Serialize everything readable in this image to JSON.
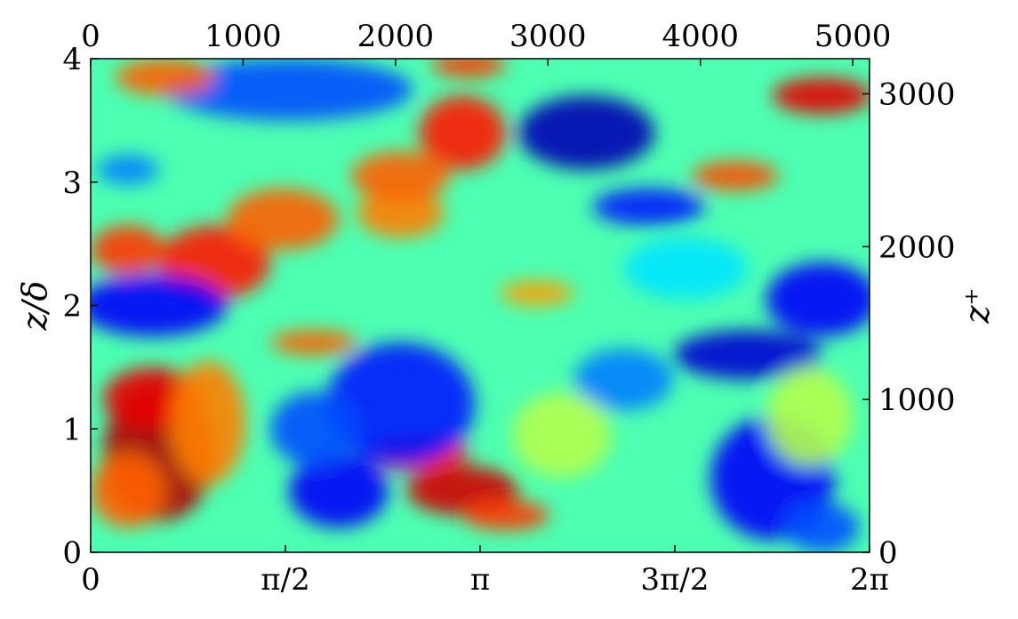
{
  "chart_data": {
    "type": "heatmap",
    "title": "",
    "colormap": "jet",
    "colormap_stops": [
      "#00007f",
      "#0000ff",
      "#007fff",
      "#00ffff",
      "#7fff7f",
      "#ffff00",
      "#ff7f00",
      "#ff0000",
      "#7f0000"
    ],
    "x_bottom": {
      "label": "",
      "range": [
        0,
        6.2832
      ],
      "ticks": [
        {
          "value": 0,
          "label": "0"
        },
        {
          "value": 1.5708,
          "label": "π/2"
        },
        {
          "value": 3.1416,
          "label": "π"
        },
        {
          "value": 4.7124,
          "label": "3π/2"
        },
        {
          "value": 6.2832,
          "label": "2π"
        }
      ]
    },
    "x_top": {
      "label": "",
      "range": [
        0,
        5110
      ],
      "ticks": [
        {
          "value": 0,
          "label": "0"
        },
        {
          "value": 1000,
          "label": "1000"
        },
        {
          "value": 2000,
          "label": "2000"
        },
        {
          "value": 3000,
          "label": "3000"
        },
        {
          "value": 4000,
          "label": "4000"
        },
        {
          "value": 5000,
          "label": "5000"
        }
      ]
    },
    "y_left": {
      "label": "z/δ",
      "range": [
        0,
        4
      ],
      "ticks": [
        {
          "value": 0,
          "label": "0"
        },
        {
          "value": 1,
          "label": "1"
        },
        {
          "value": 2,
          "label": "2"
        },
        {
          "value": 3,
          "label": "3"
        },
        {
          "value": 4,
          "label": "4"
        }
      ]
    },
    "y_right": {
      "label": "z⁺",
      "range": [
        0,
        3230
      ],
      "ticks": [
        {
          "value": 0,
          "label": "0"
        },
        {
          "value": 1000,
          "label": "1000"
        },
        {
          "value": 2000,
          "label": "2000"
        },
        {
          "value": 3000,
          "label": "3000"
        }
      ]
    },
    "features": [
      {
        "x": 0.55,
        "y": 0.8,
        "rx": 0.45,
        "ry": 0.55,
        "v": 0.95
      },
      {
        "x": 0.5,
        "y": 1.25,
        "rx": 0.4,
        "ry": 0.25,
        "v": 0.9
      },
      {
        "x": 0.3,
        "y": 0.5,
        "rx": 0.3,
        "ry": 0.3,
        "v": 0.78
      },
      {
        "x": 0.95,
        "y": 1.05,
        "rx": 0.3,
        "ry": 0.5,
        "v": 0.75
      },
      {
        "x": 3.0,
        "y": 0.5,
        "rx": 0.45,
        "ry": 0.2,
        "v": 0.92
      },
      {
        "x": 2.65,
        "y": 0.8,
        "rx": 0.4,
        "ry": 0.15,
        "v": 0.85
      },
      {
        "x": 3.35,
        "y": 0.3,
        "rx": 0.35,
        "ry": 0.12,
        "v": 0.82
      },
      {
        "x": 2.5,
        "y": 1.2,
        "rx": 0.6,
        "ry": 0.5,
        "v": 0.15
      },
      {
        "x": 2.0,
        "y": 0.5,
        "rx": 0.4,
        "ry": 0.3,
        "v": 0.12
      },
      {
        "x": 1.8,
        "y": 1.0,
        "rx": 0.35,
        "ry": 0.3,
        "v": 0.2
      },
      {
        "x": 5.5,
        "y": 0.6,
        "rx": 0.5,
        "ry": 0.5,
        "v": 0.12
      },
      {
        "x": 5.9,
        "y": 0.2,
        "rx": 0.3,
        "ry": 0.2,
        "v": 0.2
      },
      {
        "x": 5.3,
        "y": 1.6,
        "rx": 0.6,
        "ry": 0.2,
        "v": 0.08
      },
      {
        "x": 4.3,
        "y": 1.4,
        "rx": 0.4,
        "ry": 0.25,
        "v": 0.25
      },
      {
        "x": 1.0,
        "y": 2.35,
        "rx": 0.45,
        "ry": 0.3,
        "v": 0.85
      },
      {
        "x": 0.3,
        "y": 2.45,
        "rx": 0.3,
        "ry": 0.2,
        "v": 0.82
      },
      {
        "x": 1.55,
        "y": 2.7,
        "rx": 0.45,
        "ry": 0.25,
        "v": 0.78
      },
      {
        "x": 2.5,
        "y": 2.75,
        "rx": 0.35,
        "ry": 0.2,
        "v": 0.75
      },
      {
        "x": 1.8,
        "y": 1.7,
        "rx": 0.35,
        "ry": 0.1,
        "v": 0.78
      },
      {
        "x": 0.5,
        "y": 2.0,
        "rx": 0.6,
        "ry": 0.25,
        "v": 0.12
      },
      {
        "x": 5.9,
        "y": 2.05,
        "rx": 0.45,
        "ry": 0.3,
        "v": 0.12
      },
      {
        "x": 1.6,
        "y": 3.75,
        "rx": 1.0,
        "ry": 0.25,
        "v": 0.2
      },
      {
        "x": 4.0,
        "y": 3.4,
        "rx": 0.55,
        "ry": 0.3,
        "v": 0.05
      },
      {
        "x": 4.5,
        "y": 2.8,
        "rx": 0.45,
        "ry": 0.15,
        "v": 0.15
      },
      {
        "x": 3.0,
        "y": 3.4,
        "rx": 0.35,
        "ry": 0.3,
        "v": 0.85
      },
      {
        "x": 3.05,
        "y": 3.95,
        "rx": 0.3,
        "ry": 0.1,
        "v": 0.82
      },
      {
        "x": 2.5,
        "y": 3.05,
        "rx": 0.4,
        "ry": 0.2,
        "v": 0.78
      },
      {
        "x": 5.9,
        "y": 3.7,
        "rx": 0.4,
        "ry": 0.15,
        "v": 0.9
      },
      {
        "x": 5.2,
        "y": 3.05,
        "rx": 0.35,
        "ry": 0.12,
        "v": 0.8
      },
      {
        "x": 0.6,
        "y": 3.85,
        "rx": 0.4,
        "ry": 0.15,
        "v": 0.78
      },
      {
        "x": 0.3,
        "y": 3.1,
        "rx": 0.25,
        "ry": 0.12,
        "v": 0.25
      },
      {
        "x": 5.8,
        "y": 1.1,
        "rx": 0.35,
        "ry": 0.4,
        "v": 0.55
      },
      {
        "x": 3.8,
        "y": 0.95,
        "rx": 0.4,
        "ry": 0.35,
        "v": 0.55
      },
      {
        "x": 3.6,
        "y": 2.1,
        "rx": 0.3,
        "ry": 0.1,
        "v": 0.72
      },
      {
        "x": 4.8,
        "y": 2.3,
        "rx": 0.5,
        "ry": 0.25,
        "v": 0.35
      }
    ]
  }
}
